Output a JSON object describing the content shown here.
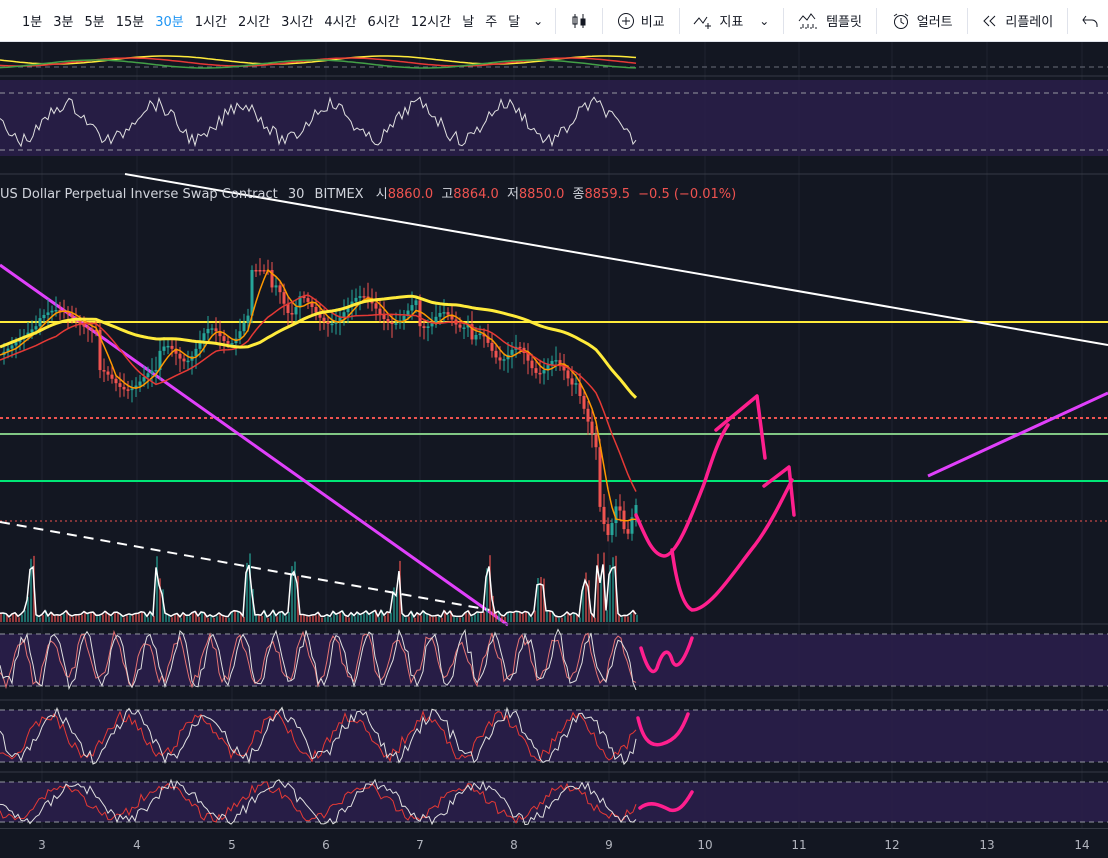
{
  "toolbar": {
    "intervals": [
      {
        "label": "1분"
      },
      {
        "label": "3분"
      },
      {
        "label": "5분"
      },
      {
        "label": "15분"
      },
      {
        "label": "30분",
        "active": true
      },
      {
        "label": "1시간"
      },
      {
        "label": "2시간"
      },
      {
        "label": "3시간"
      },
      {
        "label": "4시간"
      },
      {
        "label": "6시간"
      },
      {
        "label": "12시간"
      },
      {
        "label": "날"
      },
      {
        "label": "주"
      },
      {
        "label": "달"
      }
    ],
    "compare_label": "비교",
    "indicators_label": "지표",
    "templates_label": "템플릿",
    "alert_label": "얼러트",
    "replay_label": "리플레이",
    "icons": [
      "chevron-down-icon",
      "candles-icon",
      "plus-circle-icon",
      "indicator-icon",
      "template-icon",
      "alarm-clock-icon",
      "rewind-icon",
      "undo-icon"
    ]
  },
  "legend": {
    "symbol": "US Dollar Perpetual Inverse Swap Contract",
    "interval": "30",
    "exchange": "BITMEX",
    "open_label": "시",
    "open": "8860.0",
    "high_label": "고",
    "high": "8864.0",
    "low_label": "저",
    "low": "8850.0",
    "close_label": "종",
    "close": "8859.5",
    "change": "−0.5 (−0.01%)"
  },
  "x_axis": {
    "ticks": [
      "3",
      "4",
      "5",
      "6",
      "7",
      "8",
      "9",
      "10",
      "11",
      "12",
      "13",
      "14"
    ]
  },
  "colors": {
    "background": "#131722",
    "panel": "#2a1e4a",
    "accent_blue": "#2196f3",
    "drawing_magenta": "#ff1f8e",
    "trend_purple": "#e040fb",
    "yellow_line": "#ffeb3b",
    "green_line": "#00e676",
    "red_dotted": "#ef5350"
  }
}
